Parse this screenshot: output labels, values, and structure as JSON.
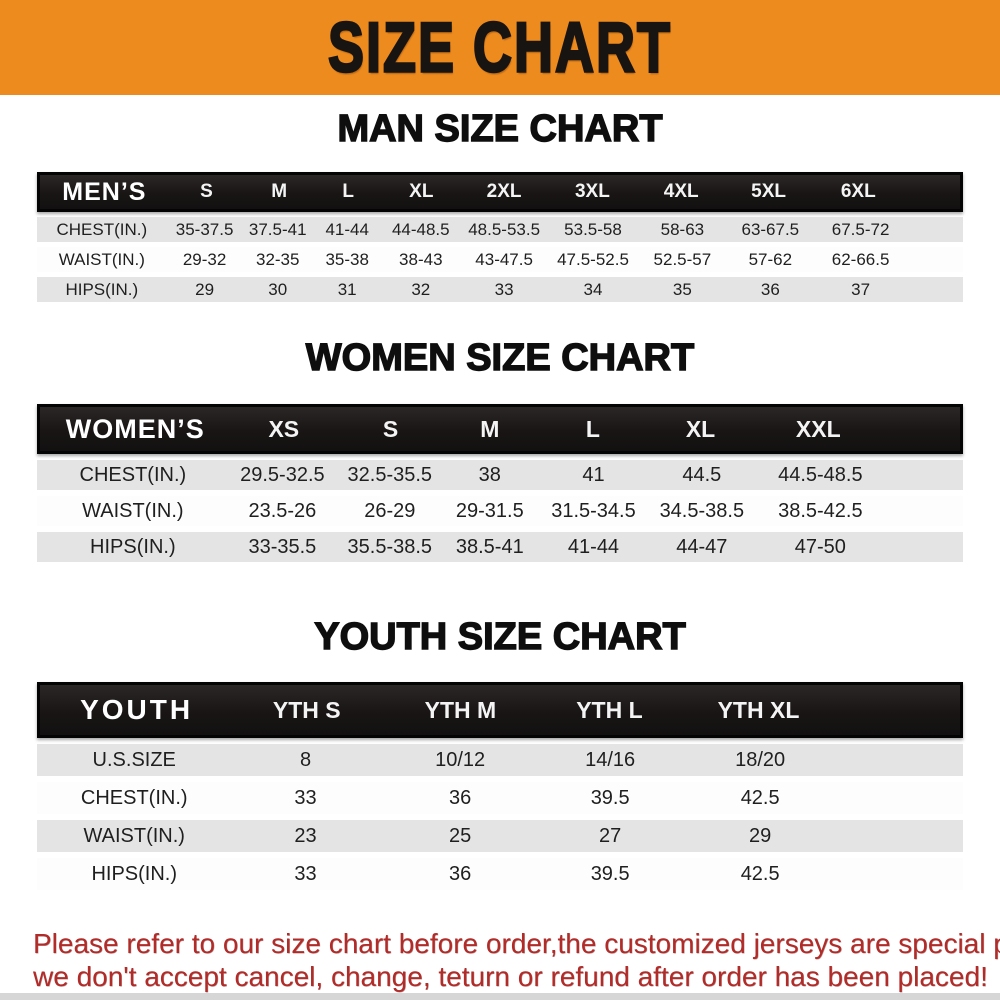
{
  "banner": {
    "title": "SIZE CHART",
    "bg_color": "#ED8B1E",
    "text_color": "#181412"
  },
  "chart_data": [
    {
      "type": "table",
      "title": "MAN SIZE CHART",
      "header_label": "MEN’S",
      "columns": [
        "S",
        "M",
        "L",
        "XL",
        "2XL",
        "3XL",
        "4XL",
        "5XL",
        "6XL"
      ],
      "rows": [
        {
          "label": "CHEST(IN.)",
          "values": [
            "35-37.5",
            "37.5-41",
            "41-44",
            "44-48.5",
            "48.5-53.5",
            "53.5-58",
            "58-63",
            "63-67.5",
            "67.5-72"
          ]
        },
        {
          "label": "WAIST(IN.)",
          "values": [
            "29-32",
            "32-35",
            "35-38",
            "38-43",
            "43-47.5",
            "47.5-52.5",
            "52.5-57",
            "57-62",
            "62-66.5"
          ]
        },
        {
          "label": "HIPS(IN.)",
          "values": [
            "29",
            "30",
            "31",
            "32",
            "33",
            "34",
            "35",
            "36",
            "37"
          ]
        }
      ]
    },
    {
      "type": "table",
      "title": "WOMEN SIZE CHART",
      "header_label": "WOMEN’S",
      "columns": [
        "XS",
        "S",
        "M",
        "L",
        "XL",
        "XXL"
      ],
      "rows": [
        {
          "label": "CHEST(IN.)",
          "values": [
            "29.5-32.5",
            "32.5-35.5",
            "38",
            "41",
            "44.5",
            "44.5-48.5"
          ]
        },
        {
          "label": "WAIST(IN.)",
          "values": [
            "23.5-26",
            "26-29",
            "29-31.5",
            "31.5-34.5",
            "34.5-38.5",
            "38.5-42.5"
          ]
        },
        {
          "label": "HIPS(IN.)",
          "values": [
            "33-35.5",
            "35.5-38.5",
            "38.5-41",
            "41-44",
            "44-47",
            "47-50"
          ]
        }
      ]
    },
    {
      "type": "table",
      "title": "YOUTH SIZE CHART",
      "header_label": "YOUTH",
      "columns": [
        "YTH S",
        "YTH M",
        "YTH L",
        "YTH XL"
      ],
      "rows": [
        {
          "label": "U.S.SIZE",
          "values": [
            "8",
            "10/12",
            "14/16",
            "18/20"
          ]
        },
        {
          "label": "CHEST(IN.)",
          "values": [
            "33",
            "36",
            "39.5",
            "42.5"
          ]
        },
        {
          "label": "WAIST(IN.)",
          "values": [
            "23",
            "25",
            "27",
            "29"
          ]
        },
        {
          "label": "HIPS(IN.)",
          "values": [
            "33",
            "36",
            "39.5",
            "42.5"
          ]
        }
      ]
    }
  ],
  "note": {
    "line1": "Please refer to our size chart before order,the customized jerseys are special products,",
    "line2": "we don't accept cancel, change, teturn or refund after order has been placed!",
    "color": "#b12b28"
  },
  "style_colors": {
    "header_bar_bg": "#1a1616",
    "row_gray": "#e4e4e4",
    "row_white": "#fdfdfd"
  }
}
